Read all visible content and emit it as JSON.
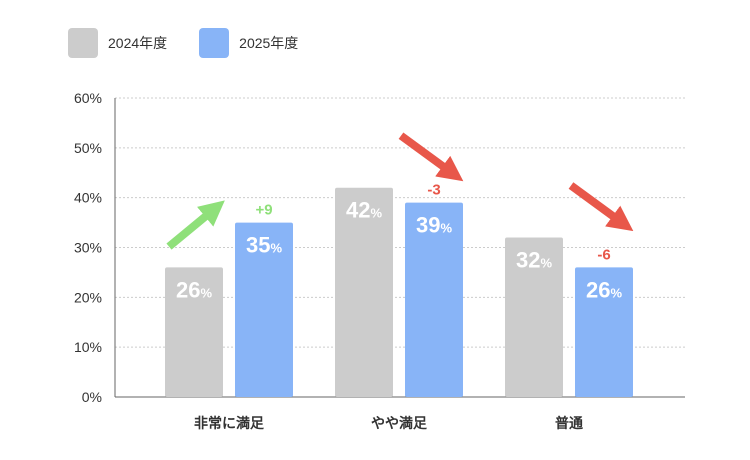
{
  "chart_data": {
    "type": "bar",
    "categories": [
      "非常に満足",
      "やや満足",
      "普通"
    ],
    "series": [
      {
        "name": "2024年度",
        "values": [
          26,
          42,
          32
        ],
        "color": "#cccccc"
      },
      {
        "name": "2025年度",
        "values": [
          35,
          39,
          26
        ],
        "color": "#88b4f7"
      }
    ],
    "value_suffix": "%",
    "changes": [
      {
        "label": "+9",
        "direction": "up",
        "color": "#8fe07a"
      },
      {
        "label": "-3",
        "direction": "down",
        "color": "#e8574a"
      },
      {
        "label": "-6",
        "direction": "down",
        "color": "#e8574a"
      }
    ],
    "yticks": [
      "0%",
      "10%",
      "20%",
      "30%",
      "40%",
      "50%",
      "60%"
    ],
    "ylim": [
      0,
      60
    ],
    "grid": true,
    "legend_position": "top-left"
  }
}
